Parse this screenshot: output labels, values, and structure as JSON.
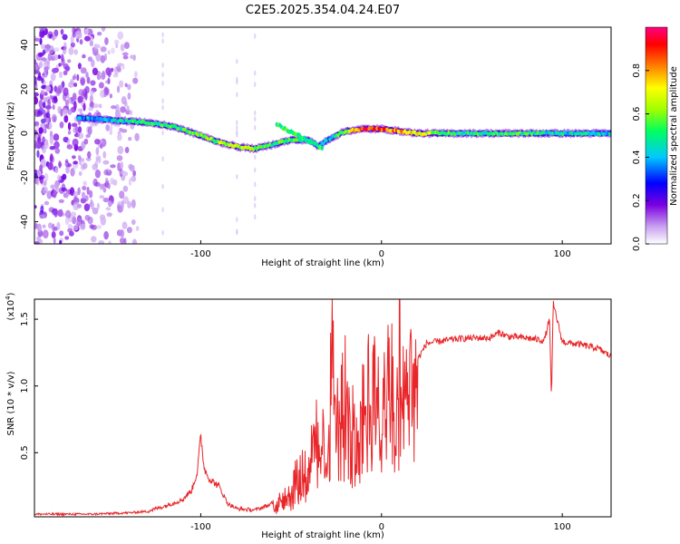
{
  "title": "C2E5.2025.354.04.24.E07",
  "colors": {
    "snr_line": "#e8262a",
    "axis": "#000000",
    "background": "#ffffff"
  },
  "chart_data": [
    {
      "type": "heatmap",
      "name": "spectrogram",
      "xlabel": "Height of straight line (km)",
      "ylabel": "Frequency (Hz)",
      "xlim": [
        -192,
        127
      ],
      "ylim": [
        -50,
        48
      ],
      "x_ticks": [
        -100,
        0,
        100
      ],
      "y_ticks": [
        -40,
        -20,
        0,
        20,
        40
      ],
      "x_tick_labels": [
        "-100",
        "0",
        "100"
      ],
      "y_tick_labels": [
        "-40",
        "-20",
        "0",
        "20",
        "40"
      ],
      "colorbar": {
        "label": "Normalized spectral amplitude",
        "range": [
          0,
          1
        ],
        "ticks": [
          0.0,
          0.2,
          0.4,
          0.6,
          0.8
        ],
        "tick_labels": [
          "0.0",
          "0.2",
          "0.4",
          "0.6",
          "0.8"
        ],
        "colormap": [
          "#ffffff",
          "#c8a0f0",
          "#7a00e0",
          "#0000ff",
          "#00c8ff",
          "#00ff60",
          "#a0ff00",
          "#ffff00",
          "#ff8000",
          "#ff0000",
          "#ff0080"
        ]
      },
      "track": {
        "x": [
          -168,
          -150,
          -130,
          -115,
          -100,
          -90,
          -80,
          -70,
          -60,
          -50,
          -40,
          -35,
          -30,
          -20,
          -10,
          0,
          10,
          20,
          40,
          60,
          80,
          100,
          127
        ],
        "freq": [
          7,
          6,
          5,
          3,
          -1,
          -4,
          -6,
          -7,
          -5,
          -3,
          -3,
          -6,
          -3,
          1,
          2,
          2,
          1,
          0,
          0,
          0,
          0,
          0,
          0
        ],
        "amplitude": [
          0.35,
          0.4,
          0.55,
          0.5,
          0.55,
          0.6,
          0.65,
          0.6,
          0.5,
          0.55,
          0.45,
          0.35,
          0.4,
          0.6,
          0.9,
          0.85,
          0.8,
          0.7,
          0.5,
          0.5,
          0.5,
          0.45,
          0.4
        ]
      },
      "noise_region": [
        -192,
        -135
      ]
    },
    {
      "type": "line",
      "name": "snr",
      "xlabel": "Height of straight line (km)",
      "ylabel": "SNR (10 * v/v)",
      "multiplier_label": "(x10",
      "multiplier_exponent": "4",
      "multiplier_close": ")",
      "xlim": [
        -192,
        127
      ],
      "ylim": [
        0.02,
        1.65
      ],
      "x_ticks": [
        -100,
        0,
        100
      ],
      "y_ticks": [
        0.5,
        1.0,
        1.5
      ],
      "x_tick_labels": [
        "-100",
        "0",
        "100"
      ],
      "y_tick_labels": [
        "0.5",
        "1.0",
        "1.5"
      ],
      "series": [
        {
          "name": "SNR",
          "x": [
            -192,
            -160,
            -140,
            -130,
            -120,
            -110,
            -105,
            -102,
            -100,
            -98,
            -95,
            -90,
            -85,
            -80,
            -70,
            -60,
            -50,
            -45,
            -40,
            -35,
            -30,
            -27,
            -25,
            -22,
            -20,
            -15,
            -10,
            -5,
            0,
            5,
            8,
            10,
            12,
            15,
            20,
            25,
            30,
            40,
            50,
            60,
            65,
            70,
            80,
            90,
            93,
            94,
            95,
            100,
            110,
            120,
            127
          ],
          "y": [
            0.04,
            0.04,
            0.05,
            0.06,
            0.1,
            0.15,
            0.22,
            0.35,
            0.62,
            0.38,
            0.3,
            0.25,
            0.12,
            0.08,
            0.07,
            0.12,
            0.25,
            0.42,
            0.5,
            0.72,
            0.6,
            1.57,
            0.8,
            0.9,
            1.05,
            0.7,
            1.0,
            1.1,
            0.85,
            1.3,
            0.6,
            1.6,
            1.0,
            1.25,
            1.2,
            1.32,
            1.33,
            1.35,
            1.36,
            1.36,
            1.4,
            1.37,
            1.36,
            1.34,
            1.5,
            0.88,
            1.62,
            1.33,
            1.31,
            1.28,
            1.22
          ]
        }
      ]
    }
  ]
}
